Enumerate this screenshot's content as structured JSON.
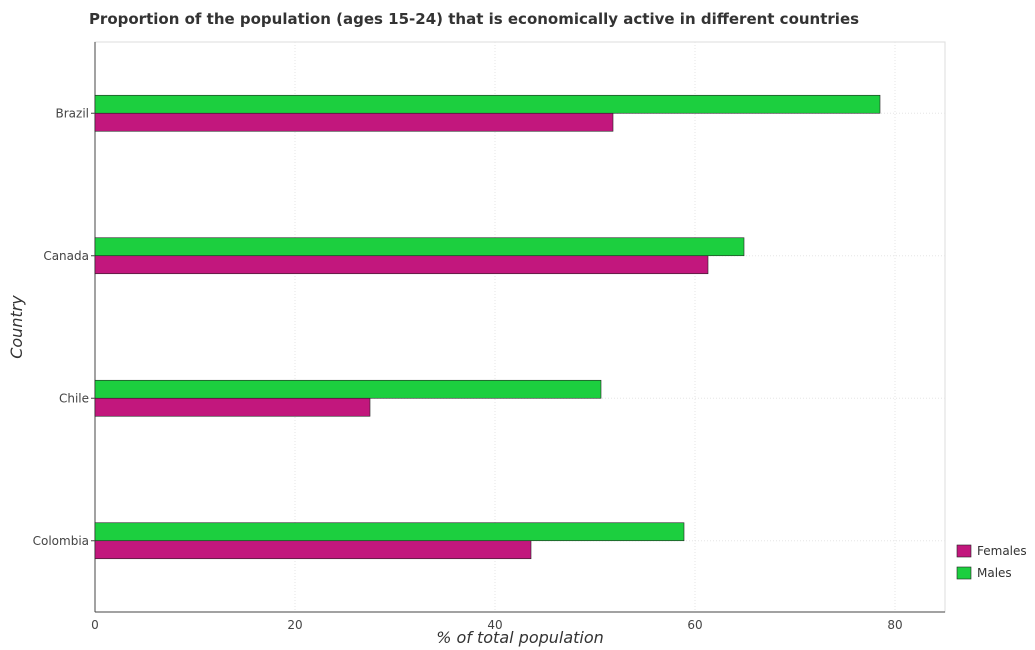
{
  "chart_data": {
    "type": "bar",
    "orientation": "horizontal",
    "title": "Proportion of the population (ages 15-24) that is economically active in different countries",
    "xlabel": "% of total population",
    "ylabel": "Country",
    "categories": [
      "Brazil",
      "Canada",
      "Chile",
      "Colombia"
    ],
    "series": [
      {
        "name": "Females",
        "color": "#c2177d",
        "values": [
          51.8,
          61.3,
          27.5,
          43.6
        ]
      },
      {
        "name": "Males",
        "color": "#1ccf3f",
        "values": [
          78.5,
          64.9,
          50.6,
          58.9
        ]
      }
    ],
    "xlim": [
      0,
      85
    ],
    "xticks": [
      "0",
      "20",
      "40",
      "60",
      "80"
    ],
    "grid": true,
    "legend_position": "bottom-right"
  }
}
